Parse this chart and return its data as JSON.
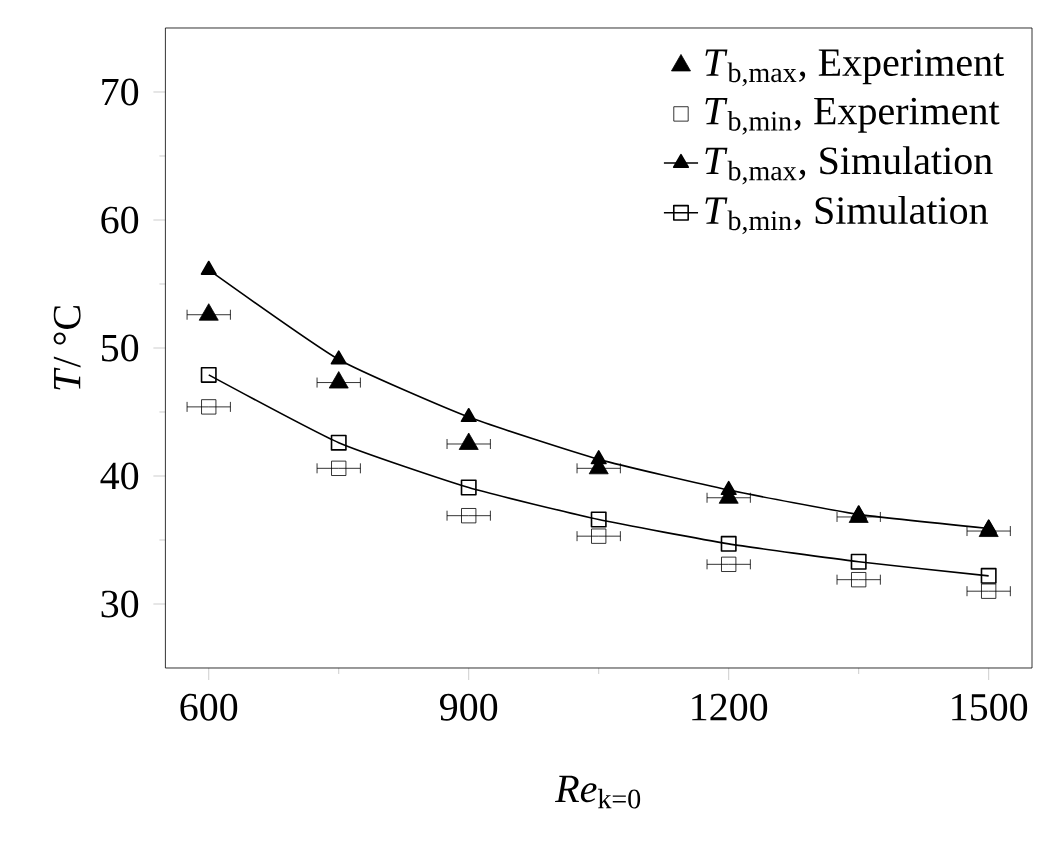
{
  "chart_data": {
    "type": "scatter",
    "xlabel": "*Re*$_{k=0}$",
    "ylabel": "*T*/ °C",
    "x": [
      600,
      750,
      900,
      1050,
      1200,
      1350,
      1500
    ],
    "xlim": [
      550,
      1550
    ],
    "xticks": [
      600,
      900,
      1200,
      1500
    ],
    "ylim": [
      25,
      75
    ],
    "yticks": [
      30,
      40,
      50,
      60,
      70
    ],
    "legend": "top right",
    "grid": false,
    "series": [
      {
        "name": "*T*$_{b,max}$, Experiment",
        "marker": "triangle",
        "color": "#000000",
        "values": [
          52.6,
          47.3,
          42.5,
          40.6,
          38.3,
          36.8,
          35.7
        ],
        "xerrors": [
          25,
          25,
          25,
          25,
          25,
          25,
          25
        ]
      },
      {
        "name": "*T*$_{b,min}$, Experiment",
        "marker": "square",
        "color": "#000000",
        "values": [
          45.4,
          40.6,
          36.9,
          35.3,
          33.1,
          31.9,
          31.0
        ],
        "xerrors": [
          25,
          25,
          25,
          25,
          25,
          25,
          25
        ]
      },
      {
        "name": "*T*$_{b,max}$, Simulation",
        "type": "line",
        "marker": "triangle",
        "line_style": "solid",
        "color": "#000000",
        "values": [
          56.1,
          49.1,
          44.6,
          41.3,
          38.9,
          37.0,
          35.9
        ]
      },
      {
        "name": "*T*$_{b,min}$, Simulation",
        "type": "line",
        "marker": "square",
        "line_style": "solid",
        "color": "#000000",
        "values": [
          47.9,
          42.6,
          39.1,
          36.6,
          34.7,
          33.3,
          32.2
        ]
      }
    ]
  }
}
